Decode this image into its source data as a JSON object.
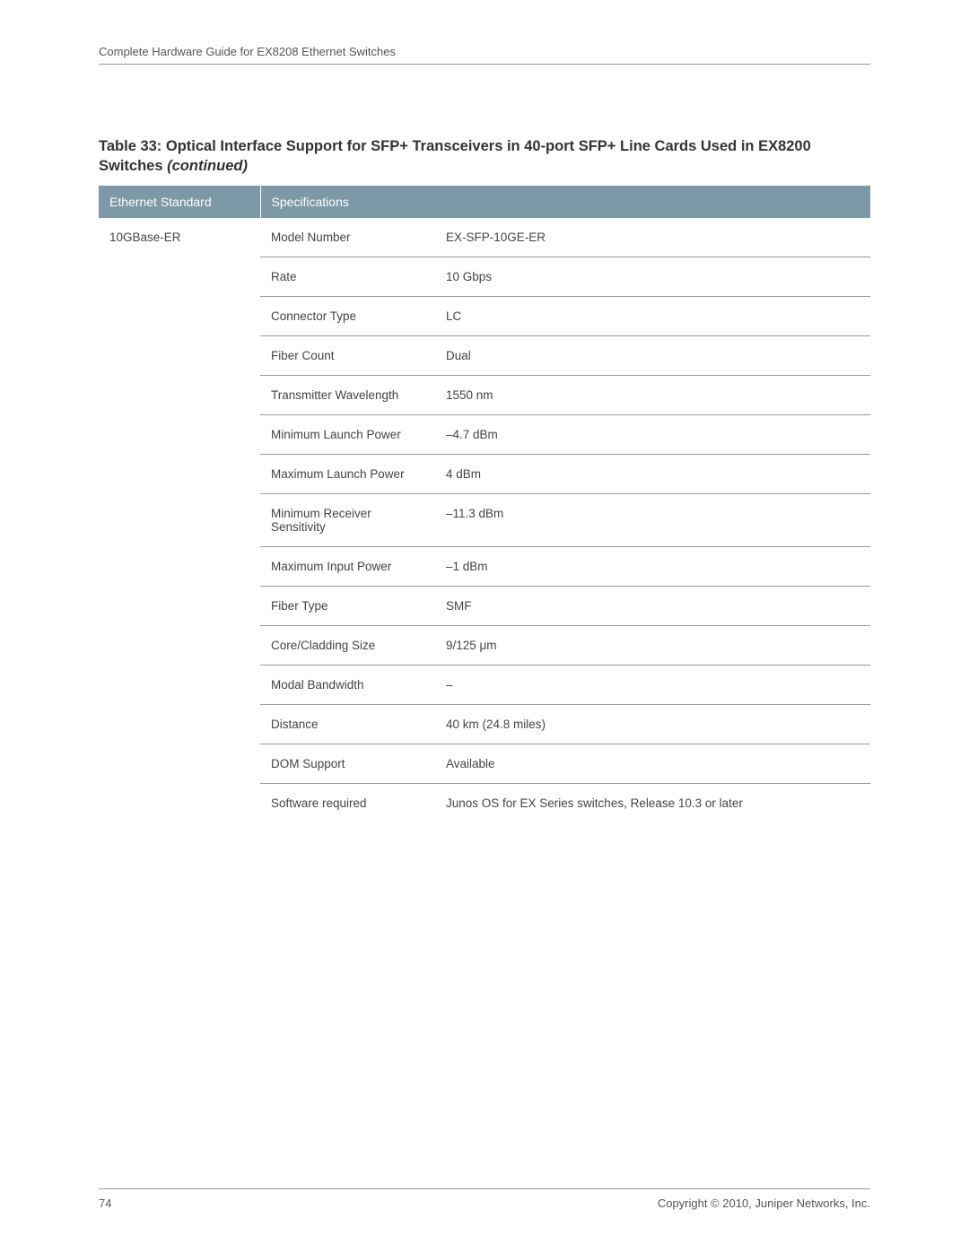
{
  "header": {
    "title": "Complete Hardware Guide for EX8208 Ethernet Switches"
  },
  "table": {
    "title_prefix": "Table 33: Optical Interface Support for SFP+ Transceivers in 40-port SFP+ Line Cards Used in EX8200 Switches ",
    "title_suffix": "(continued)",
    "columns": {
      "ethernet_standard": "Ethernet Standard",
      "specifications": "Specifications"
    },
    "ethernet_standard": "10GBase-ER",
    "rows": [
      {
        "label": "Model Number",
        "value": "EX-SFP-10GE-ER"
      },
      {
        "label": "Rate",
        "value": "10 Gbps"
      },
      {
        "label": "Connector Type",
        "value": "LC"
      },
      {
        "label": "Fiber Count",
        "value": "Dual"
      },
      {
        "label": "Transmitter Wavelength",
        "value": "1550 nm"
      },
      {
        "label": "Minimum Launch Power",
        "value": "–4.7 dBm"
      },
      {
        "label": "Maximum Launch Power",
        "value": "4 dBm"
      },
      {
        "label": "Minimum Receiver Sensitivity",
        "value": "–11.3 dBm"
      },
      {
        "label": "Maximum Input Power",
        "value": "–1 dBm"
      },
      {
        "label": "Fiber Type",
        "value": "SMF"
      },
      {
        "label": "Core/Cladding Size",
        "value": "9/125 μm"
      },
      {
        "label": "Modal Bandwidth",
        "value": "–"
      },
      {
        "label": "Distance",
        "value": "40 km (24.8 miles)"
      },
      {
        "label": "DOM Support",
        "value": "Available"
      },
      {
        "label": "Software required",
        "value": "Junos OS for EX Series switches, Release 10.3 or later"
      }
    ]
  },
  "footer": {
    "page_number": "74",
    "copyright": "Copyright © 2010, Juniper Networks, Inc."
  },
  "style": {
    "header_bg": "#7d98a6",
    "header_fg": "#ffffff",
    "border_color": "#999999",
    "text_color": "#444444",
    "body_bg": "#ffffff"
  }
}
